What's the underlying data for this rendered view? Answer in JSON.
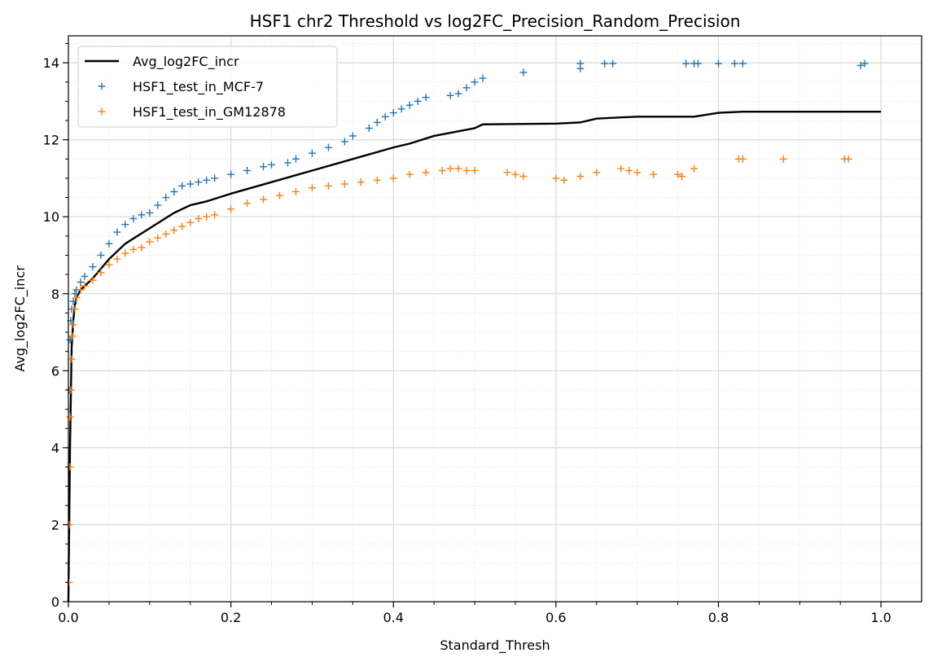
{
  "chart_data": {
    "type": "line",
    "title": "HSF1 chr2 Threshold vs log2FC_Precision_Random_Precision",
    "xlabel": "Standard_Thresh",
    "ylabel": "Avg_log2FC_incr",
    "xlim": [
      0,
      1.05
    ],
    "ylim": [
      0,
      14.7
    ],
    "xticks": [
      0.0,
      0.2,
      0.4,
      0.6,
      0.8,
      1.0
    ],
    "xtick_labels": [
      "0.0",
      "0.2",
      "0.4",
      "0.6",
      "0.8",
      "1.0"
    ],
    "yticks": [
      0,
      2,
      4,
      6,
      8,
      10,
      12,
      14
    ],
    "ytick_labels": [
      "0",
      "2",
      "4",
      "6",
      "8",
      "10",
      "12",
      "14"
    ],
    "grid": true,
    "minor_grid": true,
    "legend_position": "top-left",
    "series": [
      {
        "name": "Avg_log2FC_incr",
        "kind": "line",
        "color": "#000000",
        "x": [
          0.0,
          0.002,
          0.004,
          0.006,
          0.008,
          0.01,
          0.015,
          0.02,
          0.03,
          0.05,
          0.07,
          0.1,
          0.13,
          0.15,
          0.17,
          0.2,
          0.25,
          0.3,
          0.35,
          0.4,
          0.42,
          0.45,
          0.5,
          0.51,
          0.6,
          0.63,
          0.65,
          0.68,
          0.7,
          0.77,
          0.8,
          0.83,
          0.9,
          1.0
        ],
        "y": [
          0.0,
          4.0,
          6.6,
          7.3,
          7.7,
          7.9,
          8.1,
          8.2,
          8.4,
          8.9,
          9.3,
          9.7,
          10.1,
          10.3,
          10.4,
          10.6,
          10.9,
          11.2,
          11.5,
          11.8,
          11.9,
          12.1,
          12.3,
          12.4,
          12.42,
          12.45,
          12.55,
          12.58,
          12.6,
          12.6,
          12.7,
          12.73,
          12.73,
          12.73
        ]
      },
      {
        "name": "HSF1_test_in_MCF-7",
        "kind": "scatter",
        "marker": "+",
        "color": "#1f77b4",
        "x": [
          0.001,
          0.002,
          0.003,
          0.004,
          0.006,
          0.008,
          0.01,
          0.015,
          0.02,
          0.03,
          0.04,
          0.05,
          0.06,
          0.07,
          0.08,
          0.09,
          0.1,
          0.11,
          0.12,
          0.13,
          0.14,
          0.15,
          0.16,
          0.17,
          0.18,
          0.2,
          0.22,
          0.24,
          0.25,
          0.27,
          0.28,
          0.3,
          0.32,
          0.34,
          0.35,
          0.37,
          0.38,
          0.39,
          0.4,
          0.41,
          0.42,
          0.43,
          0.44,
          0.47,
          0.48,
          0.49,
          0.5,
          0.51,
          0.56,
          0.63,
          0.63,
          0.66,
          0.67,
          0.76,
          0.77,
          0.775,
          0.8,
          0.82,
          0.83,
          0.975,
          0.98
        ],
        "y": [
          5.5,
          6.8,
          7.3,
          7.6,
          7.8,
          8.0,
          8.1,
          8.3,
          8.45,
          8.7,
          9.0,
          9.3,
          9.6,
          9.8,
          9.95,
          10.05,
          10.1,
          10.3,
          10.5,
          10.65,
          10.8,
          10.85,
          10.9,
          10.95,
          11.0,
          11.1,
          11.2,
          11.3,
          11.35,
          11.4,
          11.5,
          11.65,
          11.8,
          11.95,
          12.1,
          12.3,
          12.45,
          12.6,
          12.7,
          12.8,
          12.9,
          13.0,
          13.1,
          13.15,
          13.2,
          13.35,
          13.5,
          13.6,
          13.75,
          13.85,
          13.98,
          13.98,
          13.98,
          13.98,
          13.98,
          13.98,
          13.98,
          13.98,
          13.98,
          13.93,
          13.98
        ]
      },
      {
        "name": "HSF1_test_in_GM12878",
        "kind": "scatter",
        "marker": "+",
        "color": "#ff7f0e",
        "x": [
          0.001,
          0.001,
          0.002,
          0.002,
          0.003,
          0.004,
          0.005,
          0.006,
          0.008,
          0.01,
          0.015,
          0.02,
          0.03,
          0.04,
          0.05,
          0.06,
          0.07,
          0.08,
          0.09,
          0.1,
          0.11,
          0.12,
          0.13,
          0.14,
          0.15,
          0.16,
          0.17,
          0.18,
          0.2,
          0.22,
          0.24,
          0.26,
          0.28,
          0.3,
          0.32,
          0.34,
          0.36,
          0.38,
          0.4,
          0.42,
          0.44,
          0.46,
          0.47,
          0.48,
          0.49,
          0.5,
          0.54,
          0.55,
          0.56,
          0.6,
          0.61,
          0.63,
          0.65,
          0.68,
          0.69,
          0.7,
          0.72,
          0.75,
          0.755,
          0.77,
          0.825,
          0.83,
          0.88,
          0.955,
          0.96
        ],
        "y": [
          0.5,
          2.0,
          3.5,
          4.8,
          5.5,
          6.3,
          6.9,
          7.2,
          7.6,
          7.9,
          8.1,
          8.2,
          8.35,
          8.55,
          8.75,
          8.9,
          9.05,
          9.15,
          9.2,
          9.35,
          9.45,
          9.55,
          9.65,
          9.75,
          9.85,
          9.95,
          10.0,
          10.05,
          10.2,
          10.35,
          10.45,
          10.55,
          10.65,
          10.75,
          10.8,
          10.85,
          10.9,
          10.95,
          11.0,
          11.1,
          11.15,
          11.2,
          11.25,
          11.25,
          11.2,
          11.2,
          11.15,
          11.1,
          11.05,
          11.0,
          10.95,
          11.05,
          11.15,
          11.25,
          11.2,
          11.15,
          11.1,
          11.1,
          11.05,
          11.25,
          11.5,
          11.5,
          11.5,
          11.5,
          11.5
        ]
      }
    ]
  }
}
